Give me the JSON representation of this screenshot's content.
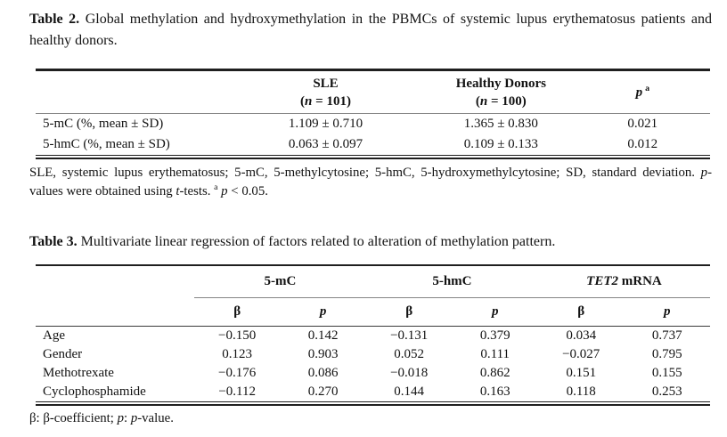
{
  "page": {
    "background": "#ffffff",
    "text_color": "#121212",
    "rule_color_heavy": "#1f1f1f",
    "rule_color_light": "#858585"
  },
  "table2": {
    "caption": [
      {
        "t": "Table 2.",
        "style": "b"
      },
      {
        "t": " Global methylation and hydroxymethylation in the PBMCs of systemic lupus erythematosus patients and healthy donors."
      }
    ],
    "header": {
      "sle_name": [
        {
          "t": "SLE",
          "style": "b"
        }
      ],
      "sle_n": [
        {
          "t": "(",
          "style": "b"
        },
        {
          "t": "n",
          "style": "bi"
        },
        {
          "t": " = 101)",
          "style": "b"
        }
      ],
      "healthy_name": [
        {
          "t": "Healthy Donors",
          "style": "b"
        }
      ],
      "healthy_n": [
        {
          "t": "(",
          "style": "b"
        },
        {
          "t": "n",
          "style": "bi"
        },
        {
          "t": " = 100)",
          "style": "b"
        }
      ],
      "p": [
        {
          "t": "p",
          "style": "bi"
        },
        {
          "t": "a",
          "style": "bsup"
        }
      ]
    },
    "rows": [
      {
        "label": "5-mC (%, mean ± SD)",
        "sle": "1.109 ± 0.710",
        "healthy": "1.365 ± 0.830",
        "p": "0.021"
      },
      {
        "label": "5-hmC (%, mean ± SD)",
        "sle": "0.063 ± 0.097",
        "healthy": "0.109 ± 0.133",
        "p": "0.012"
      }
    ],
    "footnote": [
      {
        "t": "SLE, systemic lupus erythematosus; 5-mC, 5-methylcytosine; 5-hmC, 5-hydroxymethylcytosine; SD, standard deviation. "
      },
      {
        "t": "p",
        "style": "i"
      },
      {
        "t": "-values were obtained using "
      },
      {
        "t": "t",
        "style": "i"
      },
      {
        "t": "-tests. "
      },
      {
        "t": "a",
        "style": "sup"
      },
      {
        "t": " "
      },
      {
        "t": "p",
        "style": "i"
      },
      {
        "t": " < 0.05."
      }
    ]
  },
  "table3": {
    "caption": [
      {
        "t": "Table 3.",
        "style": "b"
      },
      {
        "t": " Multivariate linear regression of factors related to alteration of methylation pattern."
      }
    ],
    "groups": {
      "g1": [
        {
          "t": "5-mC",
          "style": "b"
        }
      ],
      "g2": [
        {
          "t": "5-hmC",
          "style": "b"
        }
      ],
      "g3": [
        {
          "t": "TET2",
          "style": "bi"
        },
        {
          "t": " mRNA",
          "style": "b"
        }
      ]
    },
    "subheaders": {
      "beta": [
        {
          "t": "β",
          "style": "b"
        }
      ],
      "p": [
        {
          "t": "p",
          "style": "bi"
        }
      ]
    },
    "rows": [
      {
        "label": "Age",
        "values": [
          "−0.150",
          "0.142",
          "−0.131",
          "0.379",
          "0.034",
          "0.737"
        ]
      },
      {
        "label": "Gender",
        "values": [
          "0.123",
          "0.903",
          "0.052",
          "0.111",
          "−0.027",
          "0.795"
        ]
      },
      {
        "label": "Methotrexate",
        "values": [
          "−0.176",
          "0.086",
          "−0.018",
          "0.862",
          "0.151",
          "0.155"
        ]
      },
      {
        "label": "Cyclophosphamide",
        "values": [
          "−0.112",
          "0.270",
          "0.144",
          "0.163",
          "0.118",
          "0.253"
        ]
      }
    ],
    "footnote": [
      {
        "t": "β: β-coefficient; "
      },
      {
        "t": "p",
        "style": "i"
      },
      {
        "t": ": "
      },
      {
        "t": "p",
        "style": "i"
      },
      {
        "t": "-value."
      }
    ]
  }
}
